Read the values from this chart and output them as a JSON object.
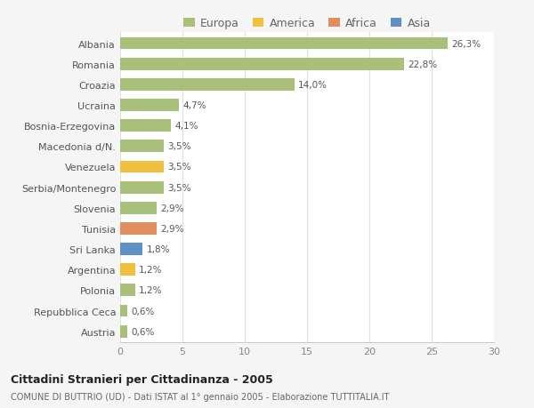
{
  "categories": [
    "Albania",
    "Romania",
    "Croazia",
    "Ucraina",
    "Bosnia-Erzegovina",
    "Macedonia d/N.",
    "Venezuela",
    "Serbia/Montenegro",
    "Slovenia",
    "Tunisia",
    "Sri Lanka",
    "Argentina",
    "Polonia",
    "Repubblica Ceca",
    "Austria"
  ],
  "values": [
    26.3,
    22.8,
    14.0,
    4.7,
    4.1,
    3.5,
    3.5,
    3.5,
    2.9,
    2.9,
    1.8,
    1.2,
    1.2,
    0.6,
    0.6
  ],
  "labels": [
    "26,3%",
    "22,8%",
    "14,0%",
    "4,7%",
    "4,1%",
    "3,5%",
    "3,5%",
    "3,5%",
    "2,9%",
    "2,9%",
    "1,8%",
    "1,2%",
    "1,2%",
    "0,6%",
    "0,6%"
  ],
  "colors": [
    "#a8c07a",
    "#a8c07a",
    "#a8c07a",
    "#a8c07a",
    "#a8c07a",
    "#a8c07a",
    "#f0c040",
    "#a8c07a",
    "#a8c07a",
    "#e09060",
    "#6090c8",
    "#f0c040",
    "#a8c07a",
    "#a8c07a",
    "#a8c07a"
  ],
  "legend_labels": [
    "Europa",
    "America",
    "Africa",
    "Asia"
  ],
  "legend_colors": [
    "#a8c07a",
    "#f0c040",
    "#e09060",
    "#6090c8"
  ],
  "title": "Cittadini Stranieri per Cittadinanza - 2005",
  "subtitle": "COMUNE DI BUTTRIO (UD) - Dati ISTAT al 1° gennaio 2005 - Elaborazione TUTTITALIA.IT",
  "xlim": [
    0,
    30
  ],
  "xticks": [
    0,
    5,
    10,
    15,
    20,
    25,
    30
  ],
  "background_color": "#f5f5f5",
  "bar_background": "#ffffff",
  "grid_color": "#e0e0e0"
}
